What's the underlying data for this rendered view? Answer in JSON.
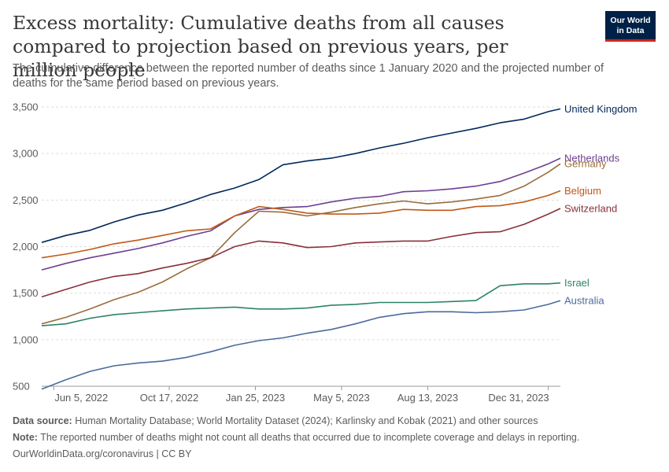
{
  "header": {
    "title": "Excess mortality: Cumulative deaths from all causes compared to projection based on previous years, per million people",
    "subtitle": "The cumulative difference between the reported number of deaths since 1 January 2020 and the projected number of deaths for the same period based on previous years.",
    "logo_line1": "Our World",
    "logo_line2": "in Data"
  },
  "footer": {
    "source_label": "Data source:",
    "source_text": "Human Mortality Database; World Mortality Dataset (2024); Karlinsky and Kobak (2021) and other sources",
    "note_label": "Note:",
    "note_text": "The reported number of deaths might not count all deaths that occurred due to incomplete coverage and delays in reporting.",
    "credit": "OurWorldinData.org/coronavirus | CC BY"
  },
  "colors": {
    "United Kingdom": "#00295b",
    "Netherlands": "#6d3e91",
    "Germany": "#996d39",
    "Belgium": "#c05917",
    "Switzerland": "#883039",
    "Israel": "#2c8465",
    "Australia": "#4c6a9c"
  },
  "chart_data": {
    "type": "line",
    "x": [
      "2022-05-22",
      "2022-06-19",
      "2022-07-17",
      "2022-08-14",
      "2022-09-11",
      "2022-10-09",
      "2022-11-06",
      "2022-12-04",
      "2023-01-01",
      "2023-01-29",
      "2023-02-26",
      "2023-03-26",
      "2023-04-23",
      "2023-05-21",
      "2023-06-18",
      "2023-07-16",
      "2023-08-13",
      "2023-09-10",
      "2023-10-08",
      "2023-11-05",
      "2023-12-03",
      "2023-12-31",
      "2024-01-14"
    ],
    "x_ticks": [
      "Jun 5, 2022",
      "Oct 17, 2022",
      "Jan 25, 2023",
      "May 5, 2023",
      "Aug 13, 2023",
      "Dec 31, 2023"
    ],
    "y_ticks": [
      500,
      1000,
      1500,
      2000,
      2500,
      3000,
      3500
    ],
    "ylim": [
      500,
      3500
    ],
    "grid": "horizontal dashed",
    "legend": "right, at line ends",
    "series": [
      {
        "name": "United Kingdom",
        "values": [
          2045,
          2120,
          2175,
          2265,
          2340,
          2390,
          2470,
          2560,
          2630,
          2720,
          2880,
          2920,
          2950,
          3000,
          3060,
          3110,
          3170,
          3220,
          3270,
          3330,
          3370,
          3450,
          3480
        ]
      },
      {
        "name": "Netherlands",
        "values": [
          1750,
          1820,
          1880,
          1930,
          1980,
          2040,
          2110,
          2170,
          2330,
          2400,
          2420,
          2430,
          2480,
          2520,
          2540,
          2590,
          2600,
          2620,
          2650,
          2700,
          2790,
          2890,
          2950
        ]
      },
      {
        "name": "Germany",
        "values": [
          1170,
          1240,
          1330,
          1430,
          1510,
          1620,
          1760,
          1880,
          2150,
          2380,
          2370,
          2330,
          2370,
          2420,
          2460,
          2490,
          2460,
          2480,
          2510,
          2550,
          2650,
          2800,
          2890
        ]
      },
      {
        "name": "Belgium",
        "values": [
          1880,
          1920,
          1970,
          2030,
          2070,
          2120,
          2170,
          2190,
          2330,
          2430,
          2400,
          2360,
          2350,
          2350,
          2360,
          2400,
          2390,
          2390,
          2430,
          2440,
          2480,
          2550,
          2600
        ]
      },
      {
        "name": "Switzerland",
        "values": [
          1460,
          1540,
          1620,
          1680,
          1710,
          1770,
          1820,
          1880,
          2000,
          2060,
          2040,
          1990,
          2000,
          2040,
          2050,
          2060,
          2060,
          2110,
          2150,
          2160,
          2240,
          2350,
          2410
        ]
      },
      {
        "name": "Israel",
        "values": [
          1150,
          1170,
          1230,
          1270,
          1290,
          1310,
          1330,
          1340,
          1350,
          1330,
          1330,
          1340,
          1370,
          1380,
          1400,
          1400,
          1400,
          1410,
          1420,
          1580,
          1600,
          1600,
          1610
        ]
      },
      {
        "name": "Australia",
        "values": [
          470,
          570,
          660,
          720,
          750,
          770,
          810,
          870,
          940,
          990,
          1020,
          1070,
          1110,
          1170,
          1240,
          1280,
          1300,
          1300,
          1290,
          1300,
          1320,
          1380,
          1420
        ]
      }
    ]
  }
}
